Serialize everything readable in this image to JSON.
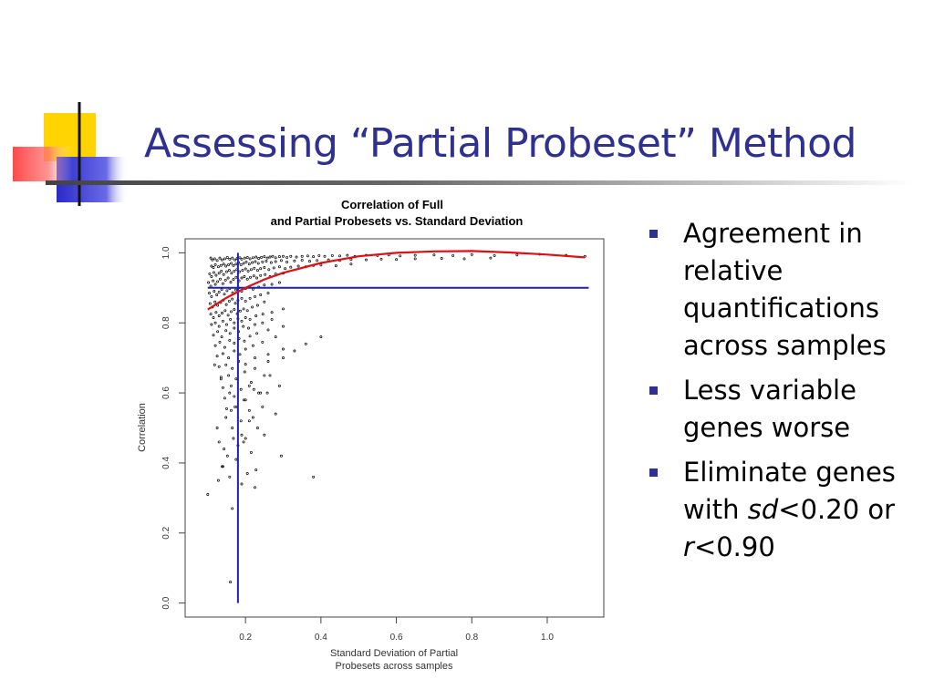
{
  "slide": {
    "title": "Assessing “Partial Probeset” Method"
  },
  "bullets": [
    {
      "parts": [
        {
          "text": "Agreement in relative quantifications across samples",
          "italic": false
        }
      ]
    },
    {
      "parts": [
        {
          "text": "Less variable genes worse",
          "italic": false
        }
      ]
    },
    {
      "parts": [
        {
          "text": "Eliminate genes with ",
          "italic": false
        },
        {
          "text": "sd",
          "italic": true
        },
        {
          "text": "<0.20 or ",
          "italic": false
        },
        {
          "text": "r",
          "italic": true
        },
        {
          "text": "<0.90",
          "italic": false
        }
      ]
    }
  ],
  "chart_data": {
    "type": "scatter",
    "title_lines": [
      "Correlation of Full",
      "and Partial Probesets vs. Standard Deviation"
    ],
    "xlabel_lines": [
      "Standard Deviation of Partial",
      "Probesets across samples"
    ],
    "ylabel": "Correlation",
    "xlim": [
      0.04,
      1.15
    ],
    "ylim": [
      -0.04,
      1.04
    ],
    "x_ticks": [
      0.2,
      0.4,
      0.6,
      0.8,
      1.0
    ],
    "x_tick_labels": [
      "0.2",
      "0.4",
      "0.6",
      "0.8",
      "1.0"
    ],
    "y_ticks": [
      0.0,
      0.2,
      0.4,
      0.6,
      0.8,
      1.0
    ],
    "y_tick_labels": [
      "0.0",
      "0.2",
      "0.4",
      "0.6",
      "0.8",
      "1.0"
    ],
    "grid": false,
    "vline": {
      "x": 0.18,
      "y_range": [
        0.0,
        1.0
      ],
      "color": "#1f1fbf"
    },
    "hline": {
      "y": 0.9,
      "x_range": [
        0.1,
        1.11
      ],
      "color": "#1f1fbf"
    },
    "fit_curve": {
      "color": "#dd1111",
      "x": [
        0.1,
        0.15,
        0.2,
        0.25,
        0.3,
        0.4,
        0.5,
        0.6,
        0.7,
        0.8,
        0.9,
        1.0,
        1.1
      ],
      "y": [
        0.838,
        0.872,
        0.9,
        0.924,
        0.943,
        0.971,
        0.99,
        1.0,
        1.004,
        1.005,
        1.001,
        0.995,
        0.987
      ]
    },
    "points": {
      "x": [
        0.108,
        0.112,
        0.118,
        0.125,
        0.132,
        0.138,
        0.145,
        0.152,
        0.158,
        0.165,
        0.172,
        0.178,
        0.185,
        0.19,
        0.198,
        0.205,
        0.212,
        0.22,
        0.228,
        0.235,
        0.242,
        0.25,
        0.258,
        0.265,
        0.272,
        0.28,
        0.29,
        0.3,
        0.31,
        0.32,
        0.335,
        0.35,
        0.365,
        0.38,
        0.395,
        0.41,
        0.43,
        0.45,
        0.47,
        0.49,
        0.52,
        0.55,
        0.58,
        0.61,
        0.65,
        0.7,
        0.75,
        0.8,
        0.86,
        0.92,
        0.98,
        1.05,
        1.1,
        0.11,
        0.115,
        0.12,
        0.128,
        0.135,
        0.142,
        0.148,
        0.155,
        0.162,
        0.168,
        0.175,
        0.182,
        0.188,
        0.195,
        0.202,
        0.21,
        0.218,
        0.226,
        0.234,
        0.245,
        0.255,
        0.268,
        0.28,
        0.295,
        0.31,
        0.33,
        0.35,
        0.37,
        0.39,
        0.42,
        0.45,
        0.48,
        0.52,
        0.56,
        0.6,
        0.65,
        0.72,
        0.78,
        0.85,
        0.105,
        0.11,
        0.116,
        0.122,
        0.13,
        0.136,
        0.142,
        0.15,
        0.157,
        0.163,
        0.17,
        0.177,
        0.184,
        0.192,
        0.2,
        0.207,
        0.215,
        0.223,
        0.232,
        0.24,
        0.25,
        0.262,
        0.275,
        0.29,
        0.305,
        0.32,
        0.34,
        0.36,
        0.38,
        0.4,
        0.44,
        0.48,
        0.102,
        0.108,
        0.114,
        0.12,
        0.126,
        0.133,
        0.14,
        0.147,
        0.154,
        0.161,
        0.168,
        0.175,
        0.183,
        0.19,
        0.197,
        0.205,
        0.213,
        0.222,
        0.23,
        0.24,
        0.252,
        0.265,
        0.28,
        0.3,
        0.104,
        0.11,
        0.117,
        0.124,
        0.13,
        0.137,
        0.144,
        0.151,
        0.158,
        0.166,
        0.174,
        0.182,
        0.19,
        0.2,
        0.21,
        0.22,
        0.235,
        0.25,
        0.27,
        0.29,
        0.106,
        0.112,
        0.119,
        0.126,
        0.134,
        0.141,
        0.149,
        0.157,
        0.165,
        0.173,
        0.18,
        0.19,
        0.2,
        0.212,
        0.225,
        0.24,
        0.26,
        0.108,
        0.115,
        0.122,
        0.13,
        0.138,
        0.146,
        0.154,
        0.162,
        0.17,
        0.178,
        0.186,
        0.195,
        0.205,
        0.218,
        0.232,
        0.25,
        0.11,
        0.12,
        0.13,
        0.14,
        0.15,
        0.16,
        0.17,
        0.18,
        0.19,
        0.2,
        0.212,
        0.228,
        0.246,
        0.27,
        0.3,
        0.115,
        0.126,
        0.137,
        0.148,
        0.159,
        0.17,
        0.182,
        0.194,
        0.208,
        0.225,
        0.245,
        0.27,
        0.12,
        0.132,
        0.145,
        0.158,
        0.17,
        0.183,
        0.197,
        0.212,
        0.23,
        0.26,
        0.3,
        0.125,
        0.14,
        0.155,
        0.17,
        0.185,
        0.2,
        0.22,
        0.245,
        0.28,
        0.13,
        0.148,
        0.165,
        0.182,
        0.2,
        0.225,
        0.26,
        0.3,
        0.135,
        0.155,
        0.175,
        0.198,
        0.225,
        0.26,
        0.14,
        0.162,
        0.188,
        0.215,
        0.25,
        0.145,
        0.17,
        0.2,
        0.24,
        0.15,
        0.178,
        0.21,
        0.118,
        0.135,
        0.158,
        0.172,
        0.188,
        0.21,
        0.235,
        0.265,
        0.3,
        0.33,
        0.36,
        0.4,
        0.125,
        0.148,
        0.162,
        0.196,
        0.222,
        0.258,
        0.29,
        0.13,
        0.165,
        0.19,
        0.21,
        0.245,
        0.28,
        0.143,
        0.168,
        0.2,
        0.232,
        0.152,
        0.18,
        0.215,
        0.25,
        0.138,
        0.175,
        0.205,
        0.228,
        0.295,
        0.128,
        0.158,
        0.19,
        0.225,
        0.38,
        0.1,
        0.14,
        0.165,
        0.195,
        0.22,
        0.16
      ],
      "y": [
        0.985,
        0.98,
        0.983,
        0.978,
        0.985,
        0.98,
        0.983,
        0.987,
        0.982,
        0.985,
        0.98,
        0.984,
        0.986,
        0.982,
        0.985,
        0.987,
        0.983,
        0.986,
        0.988,
        0.984,
        0.987,
        0.989,
        0.985,
        0.988,
        0.99,
        0.986,
        0.989,
        0.99,
        0.987,
        0.99,
        0.988,
        0.99,
        0.991,
        0.989,
        0.992,
        0.99,
        0.992,
        0.991,
        0.993,
        0.99,
        0.993,
        0.992,
        0.994,
        0.991,
        0.993,
        0.994,
        0.992,
        0.995,
        0.992,
        0.994,
        0.996,
        0.993,
        0.99,
        0.962,
        0.958,
        0.966,
        0.96,
        0.964,
        0.968,
        0.962,
        0.966,
        0.97,
        0.964,
        0.968,
        0.972,
        0.966,
        0.97,
        0.974,
        0.968,
        0.972,
        0.975,
        0.97,
        0.974,
        0.976,
        0.972,
        0.975,
        0.978,
        0.974,
        0.977,
        0.979,
        0.976,
        0.978,
        0.98,
        0.978,
        0.981,
        0.98,
        0.982,
        0.981,
        0.983,
        0.984,
        0.983,
        0.985,
        0.94,
        0.932,
        0.944,
        0.936,
        0.942,
        0.948,
        0.938,
        0.946,
        0.95,
        0.942,
        0.948,
        0.952,
        0.946,
        0.95,
        0.954,
        0.948,
        0.952,
        0.956,
        0.95,
        0.955,
        0.958,
        0.952,
        0.957,
        0.96,
        0.955,
        0.959,
        0.962,
        0.96,
        0.964,
        0.965,
        0.963,
        0.968,
        0.915,
        0.905,
        0.92,
        0.91,
        0.918,
        0.925,
        0.912,
        0.922,
        0.928,
        0.916,
        0.924,
        0.93,
        0.92,
        0.928,
        0.932,
        0.925,
        0.93,
        0.934,
        0.928,
        0.935,
        0.938,
        0.932,
        0.94,
        0.942,
        0.885,
        0.875,
        0.89,
        0.88,
        0.888,
        0.895,
        0.882,
        0.892,
        0.898,
        0.886,
        0.894,
        0.9,
        0.89,
        0.898,
        0.904,
        0.896,
        0.902,
        0.908,
        0.91,
        0.915,
        0.855,
        0.845,
        0.86,
        0.85,
        0.858,
        0.865,
        0.852,
        0.862,
        0.868,
        0.856,
        0.864,
        0.87,
        0.862,
        0.87,
        0.875,
        0.88,
        0.885,
        0.825,
        0.815,
        0.83,
        0.82,
        0.828,
        0.835,
        0.822,
        0.832,
        0.838,
        0.826,
        0.834,
        0.84,
        0.835,
        0.845,
        0.85,
        0.86,
        0.795,
        0.8,
        0.79,
        0.805,
        0.795,
        0.81,
        0.8,
        0.812,
        0.805,
        0.815,
        0.81,
        0.82,
        0.825,
        0.83,
        0.84,
        0.765,
        0.775,
        0.76,
        0.778,
        0.77,
        0.785,
        0.775,
        0.79,
        0.785,
        0.795,
        0.8,
        0.81,
        0.735,
        0.745,
        0.73,
        0.75,
        0.742,
        0.755,
        0.748,
        0.762,
        0.77,
        0.78,
        0.79,
        0.705,
        0.712,
        0.7,
        0.72,
        0.71,
        0.725,
        0.735,
        0.745,
        0.76,
        0.675,
        0.68,
        0.67,
        0.69,
        0.682,
        0.7,
        0.71,
        0.725,
        0.645,
        0.65,
        0.64,
        0.66,
        0.67,
        0.69,
        0.615,
        0.62,
        0.61,
        0.63,
        0.65,
        0.585,
        0.59,
        0.58,
        0.6,
        0.555,
        0.56,
        0.55,
        0.68,
        0.64,
        0.6,
        0.56,
        0.52,
        0.62,
        0.6,
        0.65,
        0.7,
        0.72,
        0.74,
        0.76,
        0.5,
        0.53,
        0.55,
        0.58,
        0.61,
        0.6,
        0.62,
        0.46,
        0.5,
        0.48,
        0.52,
        0.56,
        0.54,
        0.44,
        0.47,
        0.47,
        0.5,
        0.42,
        0.45,
        0.43,
        0.48,
        0.39,
        0.41,
        0.37,
        0.38,
        0.42,
        0.35,
        0.36,
        0.34,
        0.33,
        0.36,
        0.31,
        0.39,
        0.27,
        0.46,
        0.53,
        0.06
      ]
    }
  }
}
